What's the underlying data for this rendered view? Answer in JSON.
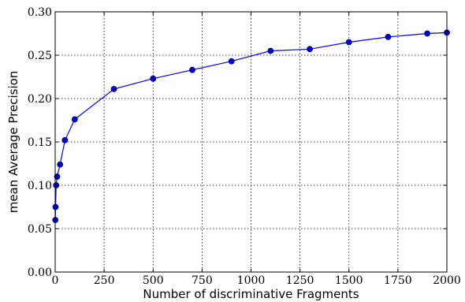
{
  "chart_data": {
    "type": "line",
    "title": "",
    "xlabel": "Number of discriminative Fragments",
    "ylabel": "mean Average Precision",
    "xlim": [
      0,
      2000
    ],
    "ylim": [
      0.0,
      0.3
    ],
    "grid": true,
    "x_ticks": [
      0,
      250,
      500,
      750,
      1000,
      1250,
      1500,
      1750,
      2000
    ],
    "x_tick_labels": [
      "0",
      "250",
      "500",
      "750",
      "1000",
      "1250",
      "1500",
      "1750",
      "2000"
    ],
    "y_ticks": [
      0.0,
      0.05,
      0.1,
      0.15,
      0.2,
      0.25,
      0.3
    ],
    "y_tick_labels": [
      "0.00",
      "0.05",
      "0.10",
      "0.15",
      "0.20",
      "0.25",
      "0.30"
    ],
    "line_color": "#0000ff",
    "marker_color": "#0000cc",
    "series": [
      {
        "x": [
          1,
          2,
          5,
          10,
          25,
          50,
          100,
          300,
          500,
          700,
          900,
          1100,
          1300,
          1500,
          1700,
          1900,
          2000
        ],
        "values": [
          0.06,
          0.075,
          0.1,
          0.11,
          0.124,
          0.152,
          0.176,
          0.211,
          0.223,
          0.233,
          0.243,
          0.255,
          0.257,
          0.265,
          0.271,
          0.275,
          0.276
        ]
      }
    ]
  }
}
